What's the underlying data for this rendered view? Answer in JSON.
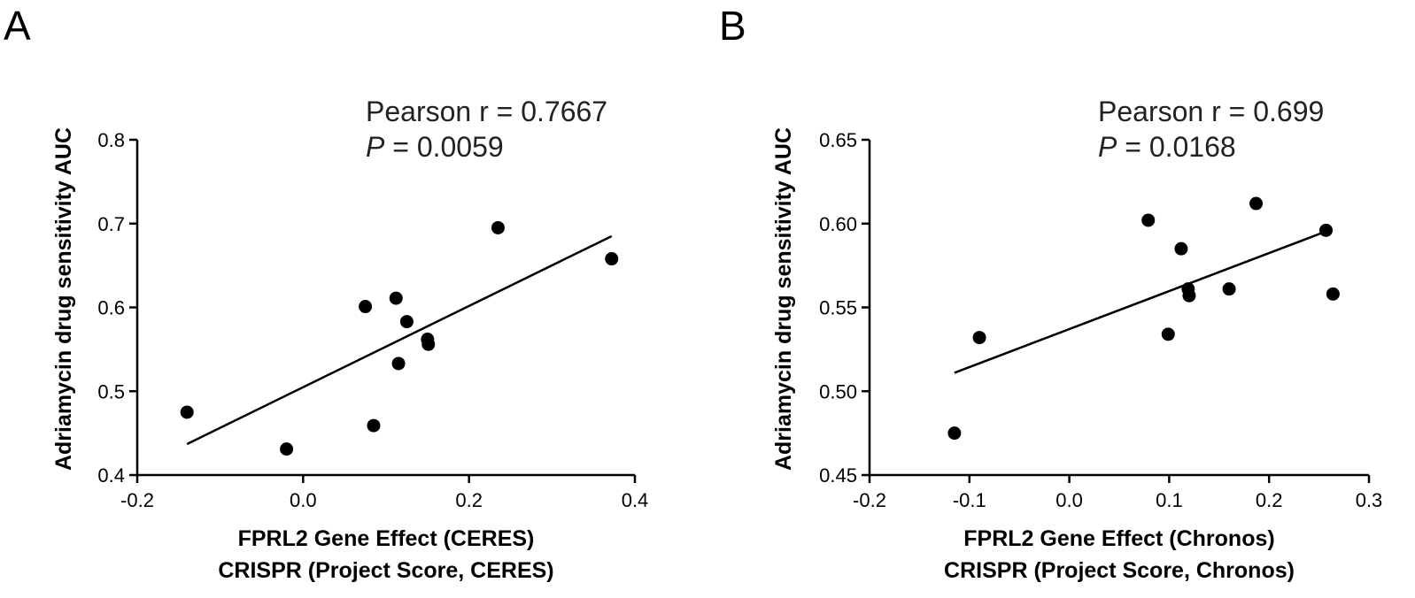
{
  "panels": [
    {
      "letter": "A"
    },
    {
      "letter": "B"
    }
  ],
  "chart_data": [
    {
      "type": "scatter",
      "ylabel": "Adriamycin drug sensitivity AUC",
      "xlabel_line1": "FPRL2 Gene Effect (CERES)",
      "xlabel_line2": "CRISPR (Project Score, CERES)",
      "xlim": [
        -0.2,
        0.4
      ],
      "ylim": [
        0.4,
        0.8
      ],
      "xticks": [
        -0.2,
        0.0,
        0.2,
        0.4
      ],
      "xtick_labels": [
        "-0.2",
        "0.0",
        "0.2",
        "0.4"
      ],
      "yticks": [
        0.4,
        0.5,
        0.6,
        0.7,
        0.8
      ],
      "ytick_labels": [
        "0.4",
        "0.5",
        "0.6",
        "0.7",
        "0.8"
      ],
      "grid": false,
      "annotation_line1": "Pearson r = 0.7667",
      "annotation_p_symbol": "P",
      "annotation_p_value": " = 0.0059",
      "points": [
        {
          "x": -0.14,
          "y": 0.475
        },
        {
          "x": -0.02,
          "y": 0.431
        },
        {
          "x": 0.075,
          "y": 0.601
        },
        {
          "x": 0.085,
          "y": 0.459
        },
        {
          "x": 0.112,
          "y": 0.611
        },
        {
          "x": 0.115,
          "y": 0.533
        },
        {
          "x": 0.125,
          "y": 0.583
        },
        {
          "x": 0.15,
          "y": 0.562
        },
        {
          "x": 0.151,
          "y": 0.556
        },
        {
          "x": 0.235,
          "y": 0.695
        },
        {
          "x": 0.372,
          "y": 0.658
        }
      ],
      "fit_line": [
        {
          "x": -0.14,
          "y": 0.437
        },
        {
          "x": 0.372,
          "y": 0.685
        }
      ]
    },
    {
      "type": "scatter",
      "ylabel": "Adriamycin drug sensitivity AUC",
      "xlabel_line1": "FPRL2 Gene Effect (Chronos)",
      "xlabel_line2": "CRISPR (Project Score, Chronos)",
      "xlim": [
        -0.2,
        0.3
      ],
      "ylim": [
        0.45,
        0.65
      ],
      "xticks": [
        -0.2,
        -0.1,
        0.0,
        0.1,
        0.2,
        0.3
      ],
      "xtick_labels": [
        "-0.2",
        "-0.1",
        "0.0",
        "0.1",
        "0.2",
        "0.3"
      ],
      "yticks": [
        0.45,
        0.5,
        0.55,
        0.6,
        0.65
      ],
      "ytick_labels": [
        "0.45",
        "0.50",
        "0.55",
        "0.60",
        "0.65"
      ],
      "grid": false,
      "annotation_line1": "Pearson r = 0.699",
      "annotation_p_symbol": "P",
      "annotation_p_value": " = 0.0168",
      "points": [
        {
          "x": -0.115,
          "y": 0.475
        },
        {
          "x": -0.09,
          "y": 0.532
        },
        {
          "x": 0.079,
          "y": 0.602
        },
        {
          "x": 0.099,
          "y": 0.534
        },
        {
          "x": 0.112,
          "y": 0.585
        },
        {
          "x": 0.119,
          "y": 0.561
        },
        {
          "x": 0.12,
          "y": 0.557
        },
        {
          "x": 0.16,
          "y": 0.561
        },
        {
          "x": 0.187,
          "y": 0.612
        },
        {
          "x": 0.257,
          "y": 0.596
        },
        {
          "x": 0.264,
          "y": 0.558
        }
      ],
      "fit_line": [
        {
          "x": -0.115,
          "y": 0.511
        },
        {
          "x": 0.26,
          "y": 0.596
        }
      ]
    }
  ]
}
